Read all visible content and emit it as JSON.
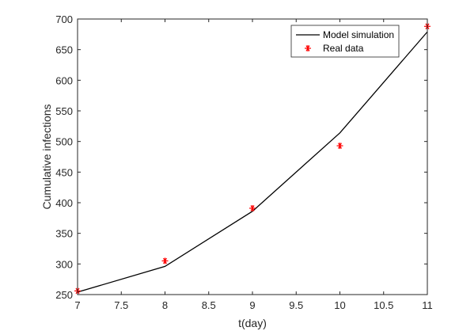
{
  "chart_data": {
    "type": "line",
    "xlabel": "t(day)",
    "ylabel": "Cumulative infections",
    "xlim": [
      7,
      11
    ],
    "ylim": [
      250,
      700
    ],
    "x_ticks": [
      "7",
      "7.5",
      "8",
      "8.5",
      "9",
      "9.5",
      "10",
      "10.5",
      "11"
    ],
    "y_ticks": [
      "250",
      "300",
      "350",
      "400",
      "450",
      "500",
      "550",
      "600",
      "650",
      "700"
    ],
    "grid": false,
    "legend_position": "top-right",
    "series": [
      {
        "name": "Model simulation",
        "style": "line",
        "color": "#000000",
        "x": [
          7,
          8,
          9,
          10,
          11
        ],
        "y": [
          254,
          296,
          386,
          514,
          679
        ]
      },
      {
        "name": "Real data",
        "style": "marker-asterisk",
        "color": "#ff0000",
        "x": [
          7,
          8,
          9,
          10,
          11
        ],
        "y": [
          256,
          305,
          391,
          493,
          688
        ]
      }
    ]
  }
}
